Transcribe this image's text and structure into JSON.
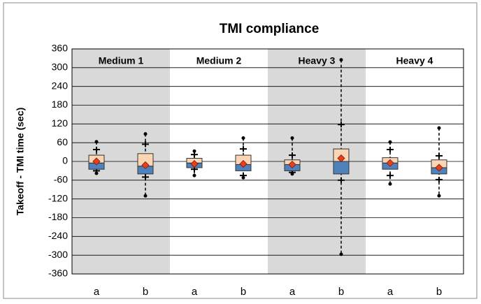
{
  "chart_data": {
    "type": "box",
    "title": "TMI compliance",
    "y_label": "Takeoff - TMI time (sec)",
    "groups": [
      "Medium 1",
      "Medium 2",
      "Heavy 3",
      "Heavy 4"
    ],
    "group_colors": [
      "#d9d9d9",
      "#ffffff",
      "#d9d9d9",
      "#ffffff"
    ],
    "categories": [
      "a",
      "b",
      "a",
      "b",
      "a",
      "b",
      "a",
      "b"
    ],
    "min": [
      -38,
      -110,
      -45,
      -52,
      -40,
      -297,
      -72,
      -110
    ],
    "whisker_low": [
      -30,
      -50,
      -25,
      -45,
      -35,
      -60,
      -45,
      -58
    ],
    "q1": [
      -25,
      -40,
      -20,
      -30,
      -30,
      -40,
      -25,
      -40
    ],
    "median": [
      -5,
      -15,
      -5,
      -10,
      -10,
      0,
      -5,
      -20
    ],
    "q3": [
      20,
      25,
      10,
      20,
      5,
      40,
      12,
      5
    ],
    "whisker_high": [
      38,
      55,
      22,
      40,
      20,
      118,
      38,
      18
    ],
    "max": [
      63,
      88,
      33,
      75,
      75,
      325,
      62,
      107
    ],
    "mean": [
      0,
      -12,
      -8,
      -8,
      -10,
      10,
      -5,
      -20
    ],
    "lower_color": "#4f81bd",
    "upper_color": "#fcd5b5",
    "mean_color": "#e8401c",
    "ylim": [
      -360,
      360
    ],
    "yticks": [
      -360,
      -300,
      -240,
      -180,
      -120,
      -60,
      0,
      60,
      120,
      180,
      240,
      300,
      360
    ],
    "grid": true
  }
}
